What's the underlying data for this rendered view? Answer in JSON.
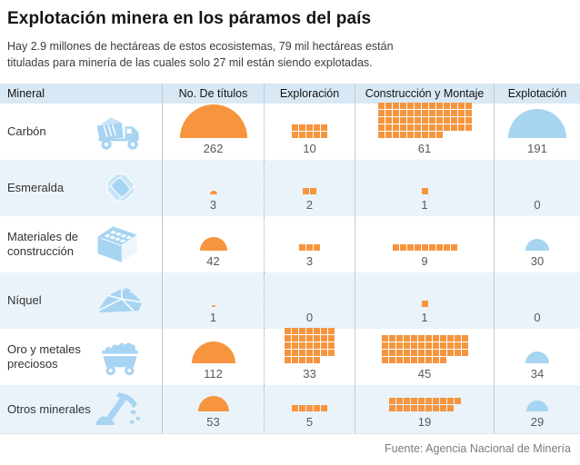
{
  "chart_data": {
    "type": "table",
    "title": "Explotación minera en los páramos del país",
    "subtitle": "Hay 2.9 millones de hectáreas de estos ecosistemas, 79 mil hectáreas están tituladas para minería de las cuales solo 27 mil  están siendo explotadas.",
    "source": "Fuente: Agencia Nacional de Minería",
    "columns": [
      "Mineral",
      "No. De títulos",
      "Exploración",
      "Construcción y Montaje",
      "Explotación"
    ],
    "legend_note": "orange = títulos/exploración/construcción pictograms, blue = explotación",
    "rows": [
      {
        "mineral": "Carbón",
        "icon": "dump-truck-icon",
        "no_de_titulos": 262,
        "exploracion": 10,
        "construccion_y_montaje": 61,
        "explotacion": 191
      },
      {
        "mineral": "Esmeralda",
        "icon": "gem-icon",
        "no_de_titulos": 3,
        "exploracion": 2,
        "construccion_y_montaje": 1,
        "explotacion": 0
      },
      {
        "mineral": "Materiales de construcción",
        "icon": "brick-icon",
        "no_de_titulos": 42,
        "exploracion": 3,
        "construccion_y_montaje": 9,
        "explotacion": 30
      },
      {
        "mineral": "Níquel",
        "icon": "rock-icon",
        "no_de_titulos": 1,
        "exploracion": 0,
        "construccion_y_montaje": 1,
        "explotacion": 0
      },
      {
        "mineral": "Oro y metales preciosos",
        "icon": "mine-cart-icon",
        "no_de_titulos": 112,
        "exploracion": 33,
        "construccion_y_montaje": 45,
        "explotacion": 34
      },
      {
        "mineral": "Otros minerales",
        "icon": "pickaxe-icon",
        "no_de_titulos": 53,
        "exploracion": 5,
        "construccion_y_montaje": 19,
        "explotacion": 29
      }
    ],
    "colors": {
      "orange": "#F6953E",
      "light_blue": "#A6D4F1",
      "light_blue_soft": "#C7E4F8",
      "header_bg": "#D8E8F4",
      "row_stripe": "#EAF3FA"
    }
  }
}
